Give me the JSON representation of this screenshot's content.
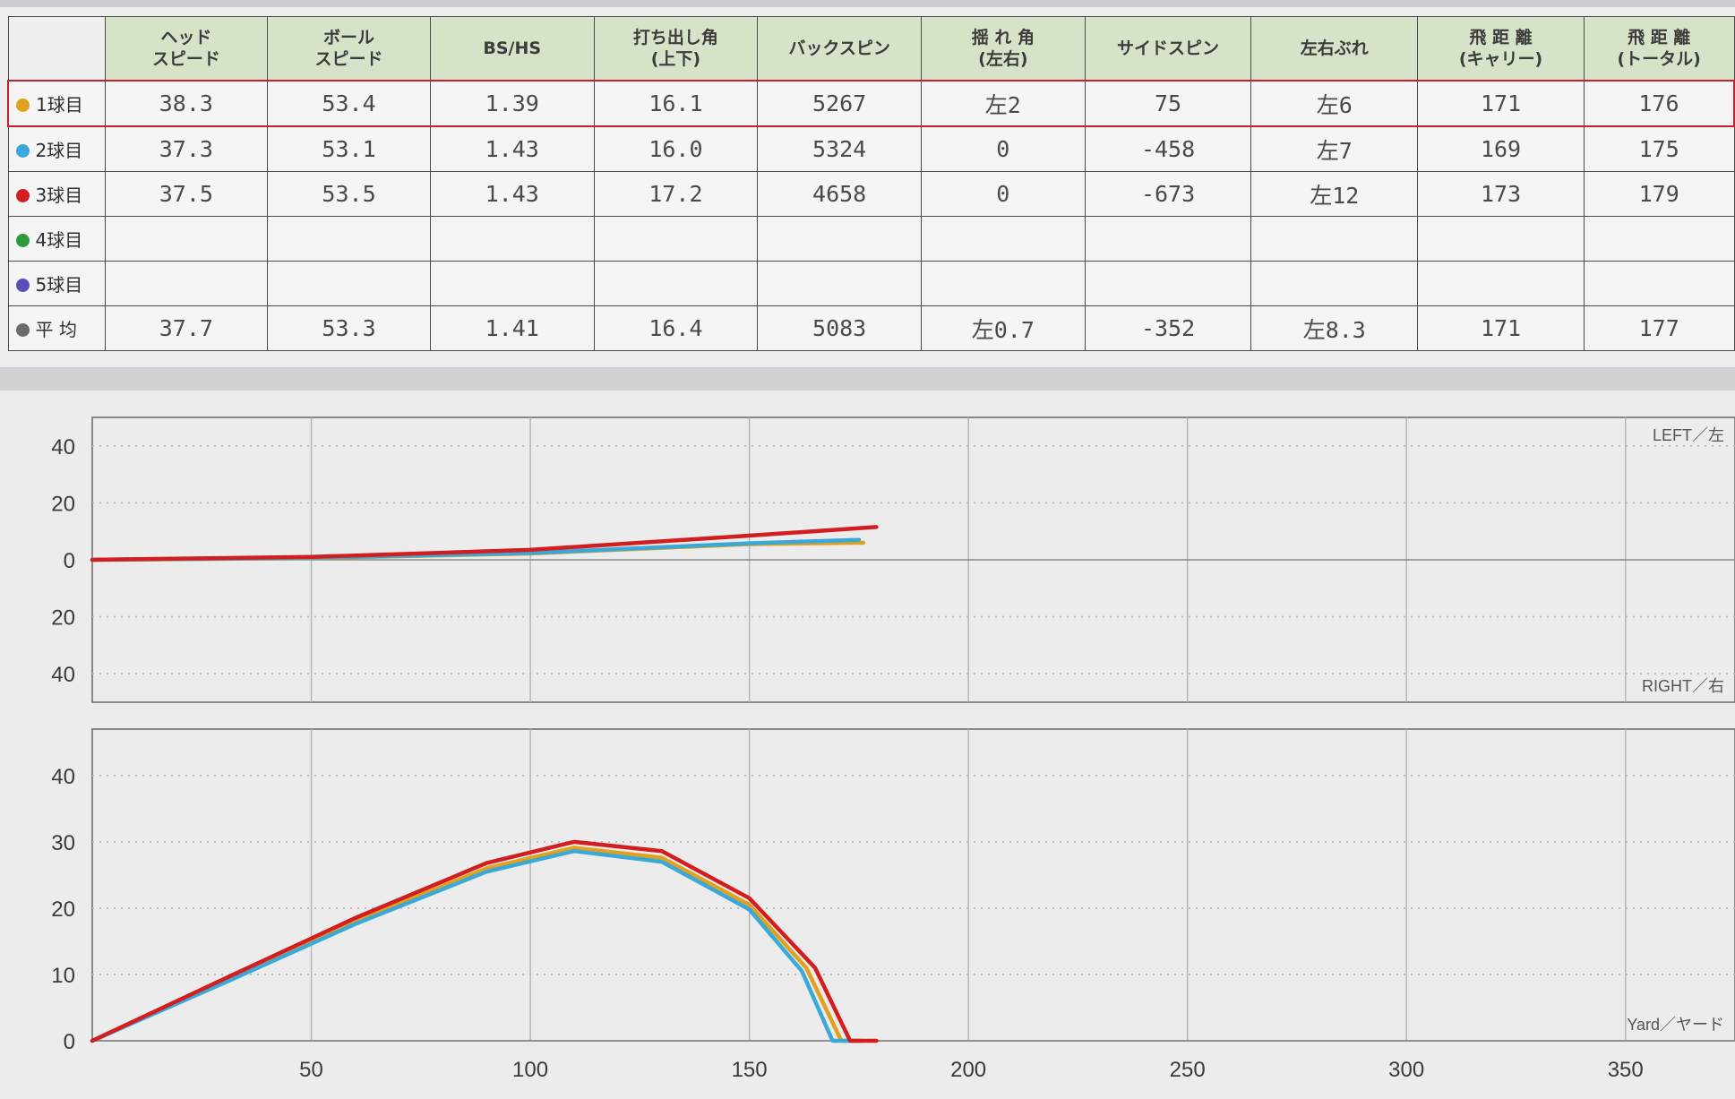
{
  "table": {
    "headers": [
      "",
      "ヘッド\nスピード",
      "ボール\nスピード",
      "BS/HS",
      "打ち出し角\n(上下)",
      "バックスピン",
      "揺 れ 角\n(左右)",
      "サイドスピン",
      "左右ぶれ",
      "飛 距 離\n(キャリー)",
      "飛 距 離\n(トータル)"
    ],
    "rows": [
      {
        "label": "1球目",
        "color": "#e0a21e",
        "selected": true,
        "cells": [
          "38.3",
          "53.4",
          "1.39",
          "16.1",
          "5267",
          "左2",
          "75",
          "左6",
          "171",
          "176"
        ]
      },
      {
        "label": "2球目",
        "color": "#3aa8d8",
        "selected": false,
        "cells": [
          "37.3",
          "53.1",
          "1.43",
          "16.0",
          "5324",
          "0",
          "-458",
          "左7",
          "169",
          "175"
        ]
      },
      {
        "label": "3球目",
        "color": "#d21e1e",
        "selected": false,
        "cells": [
          "37.5",
          "53.5",
          "1.43",
          "17.2",
          "4658",
          "0",
          "-673",
          "左12",
          "173",
          "179"
        ]
      },
      {
        "label": "4球目",
        "color": "#2f9a3a",
        "selected": false,
        "cells": [
          "",
          "",
          "",
          "",
          "",
          "",
          "",
          "",
          "",
          ""
        ]
      },
      {
        "label": "5球目",
        "color": "#5a4fb8",
        "selected": false,
        "cells": [
          "",
          "",
          "",
          "",
          "",
          "",
          "",
          "",
          "",
          ""
        ]
      },
      {
        "label": "平 均",
        "color": "#6a6a6a",
        "selected": false,
        "cells": [
          "37.7",
          "53.3",
          "1.41",
          "16.4",
          "5083",
          "左0.7",
          "-352",
          "左8.3",
          "171",
          "177"
        ]
      }
    ]
  },
  "chart_data": [
    {
      "type": "line",
      "x_ticks": [
        "50",
        "100",
        "150",
        "200",
        "250",
        "300",
        "350"
      ],
      "y_ticks": [
        "40",
        "20",
        "0",
        "20",
        "40"
      ],
      "xlim": [
        0,
        375
      ],
      "ylim": [
        -50,
        50
      ],
      "corner_top": "LEFT／左",
      "corner_bottom": "RIGHT／右",
      "grid": true,
      "series": [
        {
          "color": "#e0a21e",
          "points": [
            [
              0,
              0
            ],
            [
              50,
              0.6
            ],
            [
              100,
              2.2
            ],
            [
              150,
              5.5
            ],
            [
              176,
              6
            ]
          ]
        },
        {
          "color": "#3aa8d8",
          "points": [
            [
              0,
              0
            ],
            [
              50,
              0.7
            ],
            [
              100,
              2.4
            ],
            [
              150,
              5.8
            ],
            [
              175,
              7
            ]
          ]
        },
        {
          "color": "#d21e1e",
          "points": [
            [
              0,
              0
            ],
            [
              50,
              1
            ],
            [
              100,
              3.5
            ],
            [
              150,
              8.5
            ],
            [
              179,
              11.5
            ]
          ]
        }
      ]
    },
    {
      "type": "line",
      "x_ticks": [
        "50",
        "100",
        "150",
        "200",
        "250",
        "300",
        "350"
      ],
      "y_ticks": [
        "40",
        "30",
        "20",
        "10",
        "0"
      ],
      "xlim": [
        0,
        375
      ],
      "ylim": [
        0,
        47
      ],
      "corner_bottom": "Yard／ヤード",
      "grid": true,
      "series": [
        {
          "color": "#e0a21e",
          "points": [
            [
              0,
              0
            ],
            [
              30,
              9
            ],
            [
              60,
              18
            ],
            [
              90,
              26
            ],
            [
              110,
              29.1
            ],
            [
              130,
              27.6
            ],
            [
              150,
              20.5
            ],
            [
              163,
              11
            ],
            [
              171,
              0
            ],
            [
              176,
              0
            ]
          ]
        },
        {
          "color": "#3aa8d8",
          "points": [
            [
              0,
              0
            ],
            [
              30,
              8.7
            ],
            [
              60,
              17.6
            ],
            [
              90,
              25.5
            ],
            [
              110,
              28.6
            ],
            [
              130,
              27
            ],
            [
              150,
              19.8
            ],
            [
              162,
              10.5
            ],
            [
              169,
              0
            ],
            [
              175,
              0
            ]
          ]
        },
        {
          "color": "#d21e1e",
          "points": [
            [
              0,
              0
            ],
            [
              30,
              9.3
            ],
            [
              60,
              18.5
            ],
            [
              90,
              26.8
            ],
            [
              110,
              30
            ],
            [
              130,
              28.6
            ],
            [
              150,
              21.5
            ],
            [
              165,
              11
            ],
            [
              173,
              0
            ],
            [
              179,
              0
            ]
          ]
        }
      ]
    }
  ]
}
